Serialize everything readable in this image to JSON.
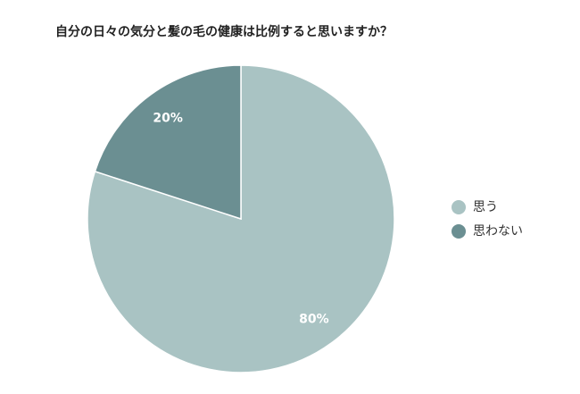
{
  "chart_data": {
    "type": "pie",
    "title": "自分の日々の気分と髪の毛の健康は比例すると思いますか？",
    "categories": [
      "思う",
      "思わない"
    ],
    "values": [
      80,
      20
    ],
    "value_labels": [
      "80%",
      "20%"
    ],
    "colors": [
      "#a9c3c3",
      "#6b8f92"
    ],
    "start_angle": 0,
    "direction": "clockwise",
    "legend": "right"
  }
}
